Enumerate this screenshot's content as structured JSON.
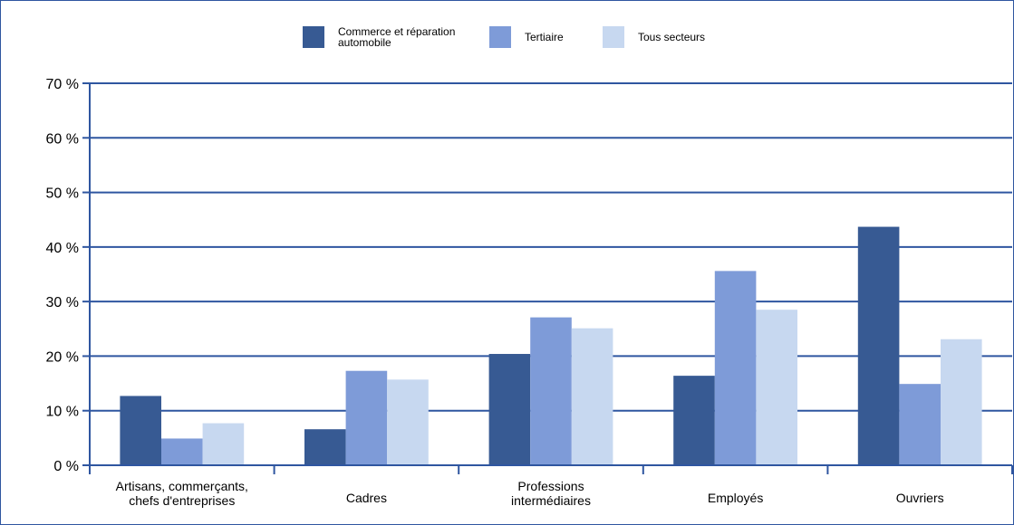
{
  "chart_data": {
    "type": "bar",
    "title": "",
    "xlabel": "",
    "ylabel": "",
    "ylim": [
      0,
      70
    ],
    "yticks": [
      0,
      10,
      20,
      30,
      40,
      50,
      60,
      70
    ],
    "ytick_labels": [
      "0 %",
      "10 %",
      "20 %",
      "30 %",
      "40 %",
      "50 %",
      "60 %",
      "70 %"
    ],
    "categories": [
      [
        "Artisans, commerçants,",
        "chefs d'entreprises"
      ],
      [
        "Cadres"
      ],
      [
        "Professions",
        "intermédiaires"
      ],
      [
        "Employés"
      ],
      [
        "Ouvriers"
      ]
    ],
    "series": [
      {
        "name": [
          "Commerce et réparation",
          "automobile"
        ],
        "color": "#375a93",
        "values": [
          12.7,
          6.6,
          20.4,
          16.4,
          43.7
        ]
      },
      {
        "name": [
          "Tertiaire"
        ],
        "color": "#7e9bd8",
        "values": [
          4.9,
          17.3,
          27.1,
          35.6,
          14.9
        ]
      },
      {
        "name": [
          "Tous secteurs"
        ],
        "color": "#c7d8f0",
        "values": [
          7.7,
          15.7,
          25.1,
          28.5,
          23.1
        ]
      }
    ],
    "grid": true,
    "legend_position": "top-center",
    "colors": {
      "axis": "#2f56a0",
      "border": "#2f56a0"
    }
  }
}
